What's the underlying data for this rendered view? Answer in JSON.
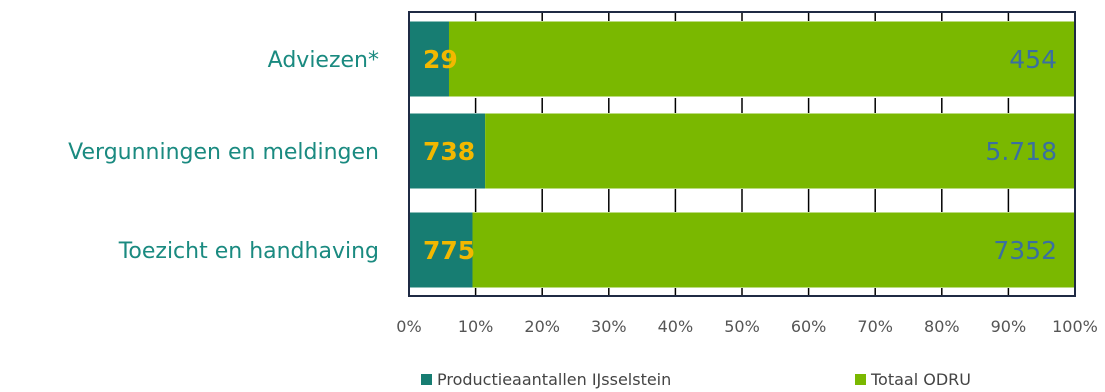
{
  "chart_data": {
    "type": "bar",
    "orientation": "horizontal",
    "stacking": "percent",
    "categories": [
      "Adviezen*",
      "Vergunningen en meldingen",
      "Toezicht en handhaving"
    ],
    "series": [
      {
        "name": "Productieaantallen IJsselstein",
        "color": "#177d72",
        "values": [
          29,
          738,
          775
        ],
        "labels": [
          "29",
          "738",
          "775"
        ]
      },
      {
        "name": "Totaal ODRU",
        "color": "#7ab800",
        "values": [
          454,
          5718,
          7352
        ],
        "labels": [
          "454",
          "5.718",
          "7352"
        ]
      }
    ],
    "x_ticks": [
      "0%",
      "10%",
      "20%",
      "30%",
      "40%",
      "50%",
      "60%",
      "70%",
      "80%",
      "90%",
      "100%"
    ],
    "xlim": [
      0,
      100
    ],
    "legend_position": "bottom",
    "data_label_colors": {
      "series_a": "#f2b800",
      "series_b": "#3a6fa0"
    },
    "category_label_color": "#1a8a80"
  }
}
